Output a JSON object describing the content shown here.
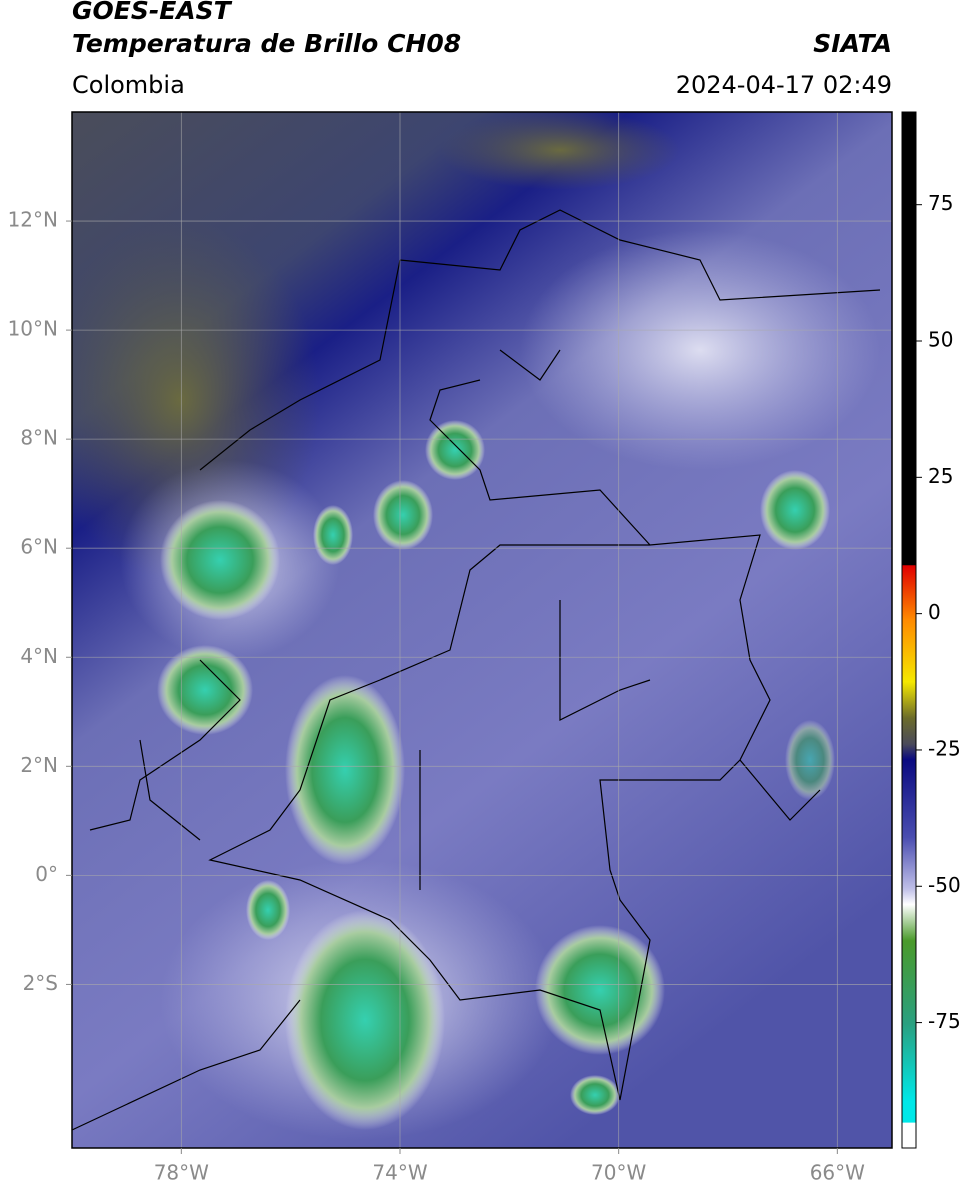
{
  "header": {
    "satellite": "GOES-EAST",
    "product": "Temperatura de Brillo CH08",
    "region": "Colombia",
    "source": "SIATA",
    "datetime": "2024-04-17 02:49"
  },
  "map": {
    "xlim": [
      -80,
      -65
    ],
    "ylim": [
      -5,
      14
    ],
    "xticks": [
      {
        "value": -78,
        "label": "78°W"
      },
      {
        "value": -74,
        "label": "74°W"
      },
      {
        "value": -70,
        "label": "70°W"
      },
      {
        "value": -66,
        "label": "66°W"
      }
    ],
    "yticks": [
      {
        "value": 12,
        "label": "12°N"
      },
      {
        "value": 10,
        "label": "10°N"
      },
      {
        "value": 8,
        "label": "8°N"
      },
      {
        "value": 6,
        "label": "6°N"
      },
      {
        "value": 4,
        "label": "4°N"
      },
      {
        "value": 2,
        "label": "2°N"
      },
      {
        "value": 0,
        "label": "0°"
      },
      {
        "value": -2,
        "label": "2°S"
      }
    ],
    "grid": true
  },
  "colorbar": {
    "lim": [
      -98,
      92
    ],
    "ticks": [
      75,
      50,
      25,
      0,
      -25,
      -50,
      -75
    ]
  }
}
